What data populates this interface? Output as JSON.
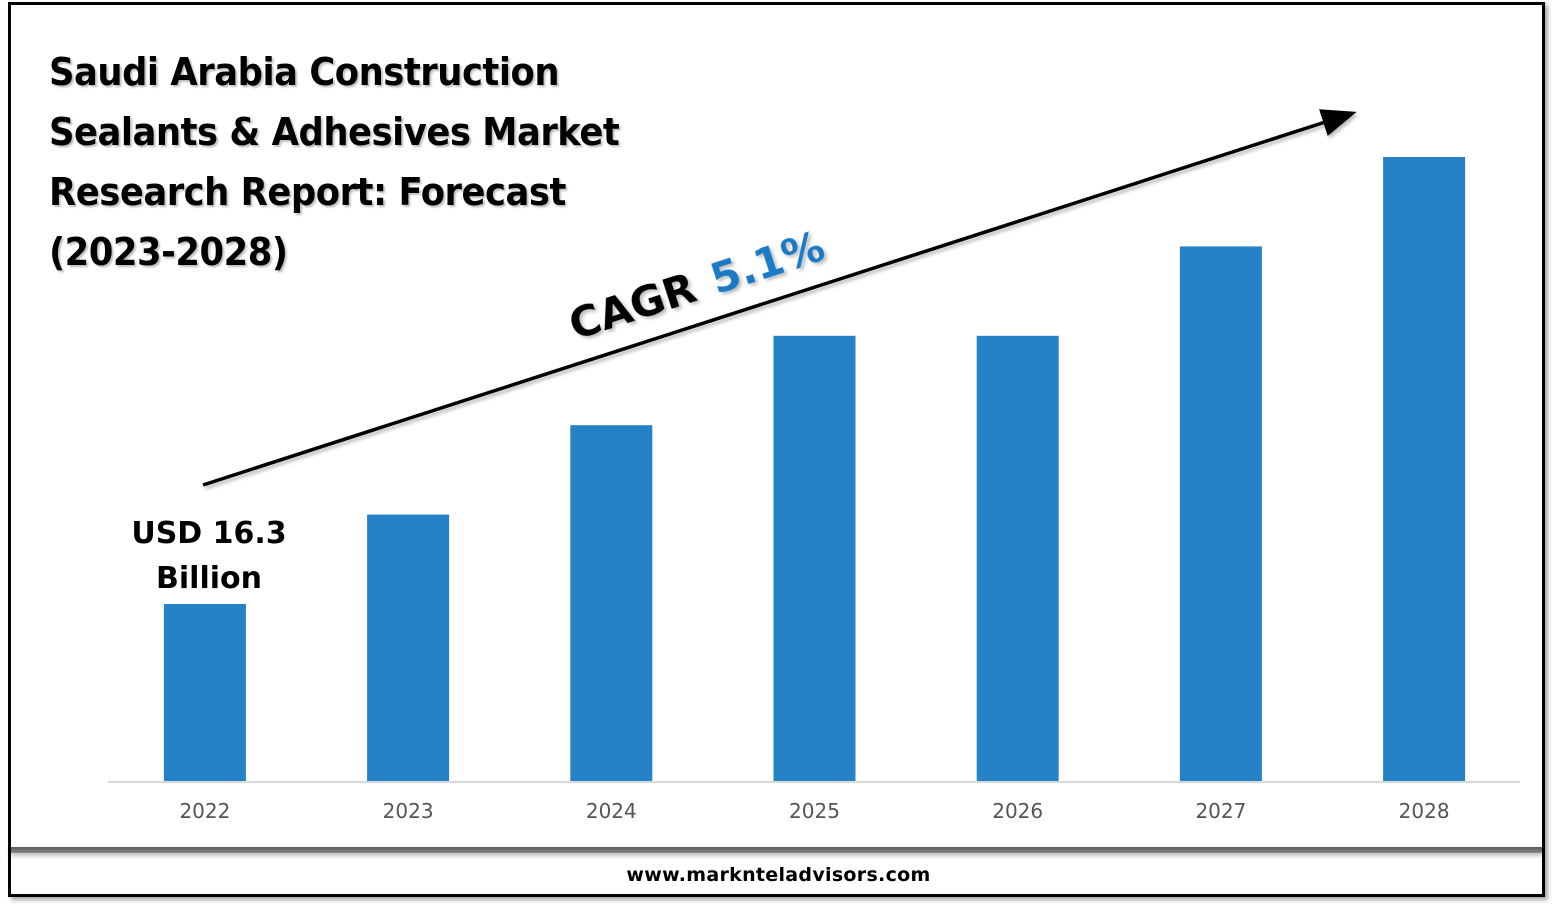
{
  "title_lines": [
    "Saudi Arabia Construction",
    "Sealants & Adhesives Market",
    "Research Report: Forecast",
    "(2023-2028)"
  ],
  "footer": {
    "url": "www.marknteladvisors.com"
  },
  "annotation": {
    "cagr_label": "CAGR",
    "cagr_value": "5.1%",
    "base_value_line1": "USD 16.3",
    "base_value_line2": "Billion"
  },
  "colors": {
    "bar": "#2682c7",
    "axis": "#d9d9d9",
    "tick_text": "#555555",
    "cagr_accent": "#1f7ac4"
  },
  "chart_data": {
    "type": "bar",
    "title": "Saudi Arabia Construction Sealants & Adhesives Market Research Report: Forecast (2023-2028)",
    "xlabel": "",
    "ylabel": "",
    "categories": [
      "2022",
      "2023",
      "2024",
      "2025",
      "2026",
      "2027",
      "2028"
    ],
    "values_relative": [
      1,
      1.5,
      2,
      2.5,
      2.5,
      3,
      3.5
    ],
    "labeled_values": {
      "2022": 16.3
    },
    "value_unit": "USD Billion",
    "relative_max": 3.5,
    "grid": false,
    "legend": "none",
    "annotations": [
      "USD 16.3 Billion",
      "CAGR 5.1%"
    ]
  }
}
